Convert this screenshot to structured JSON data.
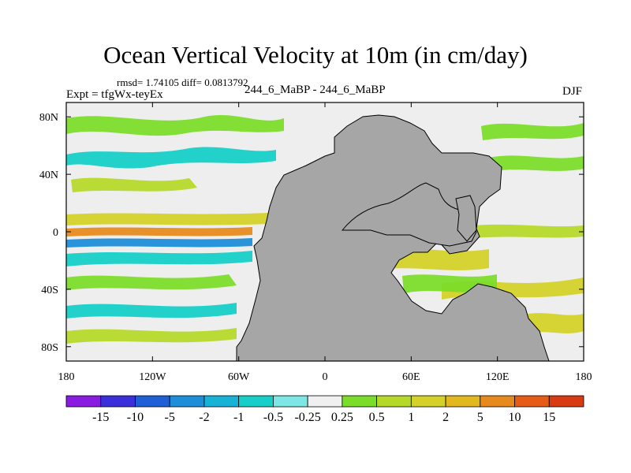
{
  "chart_data": {
    "type": "heatmap",
    "title": "Ocean Vertical Velocity at 10m (in cm/day)",
    "stats_text": "rmsd= 1.74105 diff= 0.0813792",
    "left_label": "Expt = tfgWx-teyEx",
    "center_label": "244_6_MaBP - 244_6_MaBP",
    "right_label": "DJF",
    "x_axis": {
      "range": [
        -180,
        180
      ],
      "ticks": [
        -180,
        -120,
        -60,
        0,
        60,
        120,
        180
      ],
      "tick_labels": [
        "180",
        "120W",
        "60W",
        "0",
        "60E",
        "120E",
        "180"
      ]
    },
    "y_axis": {
      "range": [
        -90,
        90
      ],
      "ticks": [
        80,
        40,
        0,
        -40,
        -80
      ],
      "tick_labels": [
        "80N",
        "40N",
        "0",
        "40S",
        "80S"
      ]
    },
    "colorbar": {
      "labels": [
        "-15",
        "-10",
        "-5",
        "-2",
        "-1",
        "-0.5",
        "-0.25",
        "0.25",
        "0.5",
        "1",
        "2",
        "5",
        "10",
        "15"
      ],
      "colors": [
        "#8a1be0",
        "#3a2fd8",
        "#1f5fd6",
        "#1d8ed8",
        "#17b2d6",
        "#17cfc8",
        "#7fe6e6",
        "#f0f0f0",
        "#7cdc2a",
        "#b6d82a",
        "#d4d22a",
        "#e2b820",
        "#e78a1e",
        "#e55c18",
        "#d83a12"
      ]
    },
    "land_color": "#a6a6a6",
    "ocean_neutral_color": "#eeeeee"
  }
}
